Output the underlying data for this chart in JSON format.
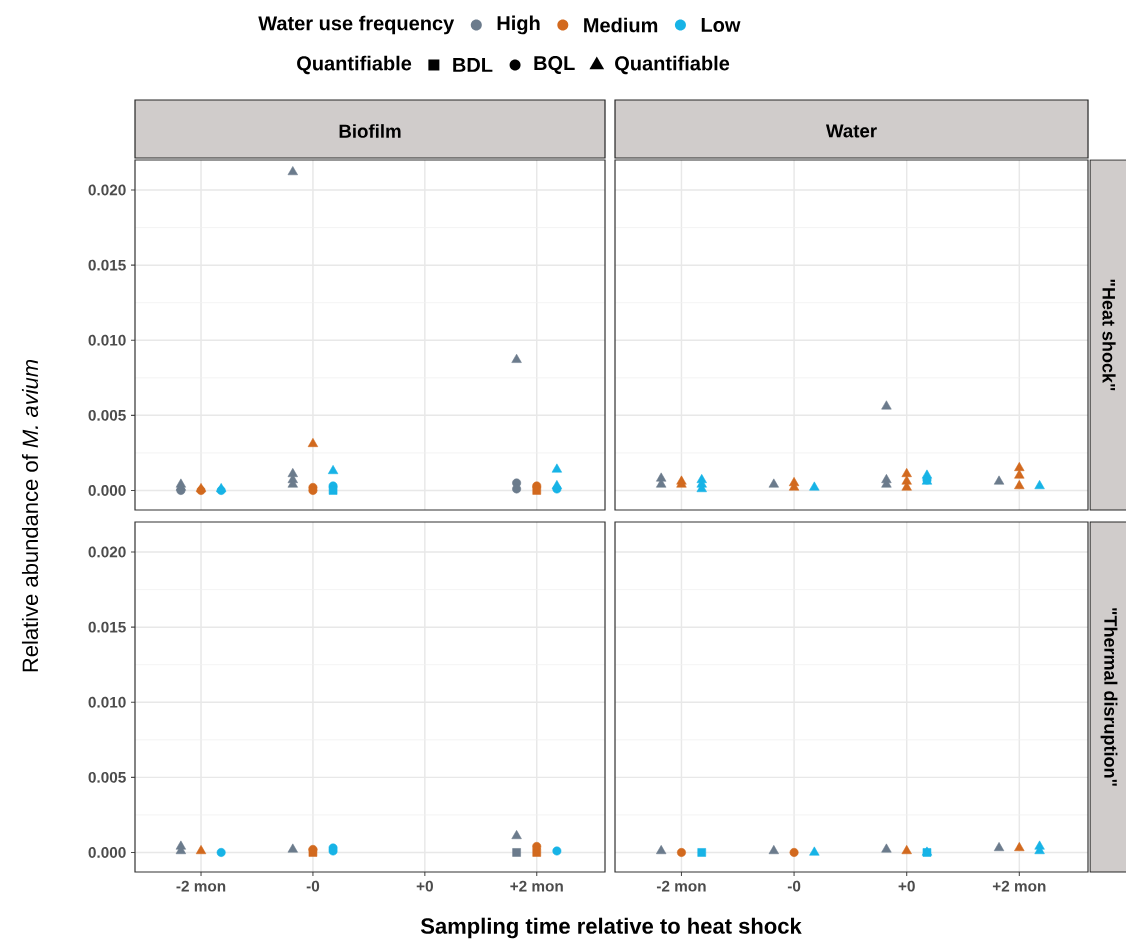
{
  "chart_data": [
    {
      "type": "scatter",
      "title": "Biofilm",
      "ylabel": "Relative abundance of *M. avium*",
      "legend": "top",
      "legend_title": "Water use frequency",
      "annotations": [
        "Quantifiable",
        "BDL",
        "BQL",
        "Quantifiable"
      ],
      "categories": [
        "-2 mon",
        "-0",
        "+0",
        "+2 mon"
      ],
      "ylim": [
        -0.0013,
        0.022
      ],
      "yticks": [
        {
          "value": 0,
          "label": "0.000"
        },
        {
          "value": 0.005,
          "label": "0.005"
        },
        {
          "value": 0.01,
          "label": "0.010"
        },
        {
          "value": 0.015,
          "label": "0.015"
        },
        {
          "value": 0.02,
          "label": "0.020"
        }
      ],
      "grid": true,
      "tick_labels": "y",
      "series": [
        {
          "name": "High",
          "color": "#6b7b8c",
          "marker": "circle",
          "x": [
            "-2 mon",
            "+2 mon",
            "+2 mon"
          ],
          "values": [
            0.0,
            0.0005,
            0.0001
          ]
        },
        {
          "color": "#6b7b8c",
          "marker": "triangle",
          "x": [
            "-2 mon",
            "-2 mon",
            "-0",
            "-0",
            "-0",
            "-0",
            "+2 mon"
          ],
          "values": [
            0.0004,
            0.0002,
            0.0011,
            0.0007,
            0.0004,
            0.0212,
            0.0087
          ]
        },
        {
          "name": "Medium",
          "color": "#d2691e",
          "marker": "circle",
          "x": [
            "-2 mon",
            "-0",
            "-0",
            "+2 mon"
          ],
          "values": [
            0.0,
            0.0002,
            0.0,
            0.0003
          ]
        },
        {
          "color": "#d2691e",
          "marker": "triangle",
          "x": [
            "-2 mon",
            "-0"
          ],
          "values": [
            0.0001,
            0.0031
          ]
        },
        {
          "color": "#d2691e",
          "marker": "square",
          "x": [
            "+2 mon"
          ],
          "values": [
            0.0
          ]
        },
        {
          "name": "Low",
          "color": "#17b3e6",
          "marker": "circle",
          "x": [
            "-2 mon",
            "-0",
            "+2 mon"
          ],
          "values": [
            0.0,
            0.0003,
            0.0001
          ]
        },
        {
          "color": "#17b3e6",
          "marker": "triangle",
          "x": [
            "-2 mon",
            "-0",
            "+2 mon",
            "+2 mon"
          ],
          "values": [
            0.0001,
            0.0013,
            0.0014,
            0.0003
          ]
        },
        {
          "color": "#17b3e6",
          "marker": "square",
          "x": [
            "-0"
          ],
          "values": [
            0.0
          ]
        }
      ]
    },
    {
      "type": "scatter",
      "title": "Water",
      "y2label": "\"Heat shock\"",
      "categories": [
        "-2 mon",
        "-0",
        "+0",
        "+2 mon"
      ],
      "ylim": [
        -0.0013,
        0.022
      ],
      "yticks": [
        0,
        0.005,
        0.01,
        0.015,
        0.02
      ],
      "grid": true,
      "tick_labels": false,
      "series": [
        {
          "color": "#6b7b8c",
          "marker": "triangle",
          "x": [
            "-2 mon",
            "-2 mon",
            "-0",
            "+0",
            "+0",
            "+0",
            "+2 mon"
          ],
          "values": [
            0.0008,
            0.0004,
            0.0004,
            0.0056,
            0.0007,
            0.0004,
            0.0006
          ]
        },
        {
          "color": "#d2691e",
          "marker": "triangle",
          "x": [
            "-2 mon",
            "-2 mon",
            "-0",
            "-0",
            "+0",
            "+0",
            "+0",
            "+2 mon",
            "+2 mon",
            "+2 mon"
          ],
          "values": [
            0.0006,
            0.0004,
            0.0005,
            0.0002,
            0.0011,
            0.0006,
            0.0002,
            0.0015,
            0.001,
            0.0003
          ]
        },
        {
          "color": "#17b3e6",
          "marker": "triangle",
          "x": [
            "-2 mon",
            "-2 mon",
            "-2 mon",
            "-0",
            "+0",
            "+0",
            "+2 mon"
          ],
          "values": [
            0.0007,
            0.0004,
            0.0001,
            0.0002,
            0.001,
            0.0006,
            0.0003
          ]
        },
        {
          "color": "#17b3e6",
          "marker": "circle",
          "x": [
            "+0"
          ],
          "values": [
            0.0007
          ]
        }
      ]
    },
    {
      "type": "scatter",
      "xlabel": "Sampling time relative to heat shock",
      "categories": [
        "-2 mon",
        "-0",
        "+0",
        "+2 mon"
      ],
      "ylim": [
        -0.0013,
        0.022
      ],
      "yticks": [
        {
          "value": 0,
          "label": "0.000"
        },
        {
          "value": 0.005,
          "label": "0.005"
        },
        {
          "value": 0.01,
          "label": "0.010"
        },
        {
          "value": 0.015,
          "label": "0.015"
        },
        {
          "value": 0.02,
          "label": "0.020"
        }
      ],
      "grid": true,
      "series": [
        {
          "color": "#6b7b8c",
          "marker": "triangle",
          "x": [
            "-2 mon",
            "-2 mon",
            "-0",
            "+2 mon"
          ],
          "values": [
            0.0004,
            0.0001,
            0.0002,
            0.0011
          ]
        },
        {
          "color": "#6b7b8c",
          "marker": "square",
          "x": [
            "+2 mon"
          ],
          "values": [
            0.0
          ]
        },
        {
          "color": "#d2691e",
          "marker": "triangle",
          "x": [
            "-2 mon"
          ],
          "values": [
            0.0001
          ]
        },
        {
          "color": "#d2691e",
          "marker": "square",
          "x": [
            "-0",
            "+2 mon"
          ],
          "values": [
            0.0,
            0.0
          ]
        },
        {
          "color": "#d2691e",
          "marker": "circle",
          "x": [
            "-0",
            "+2 mon"
          ],
          "values": [
            0.0002,
            0.0004
          ]
        },
        {
          "color": "#17b3e6",
          "marker": "circle",
          "x": [
            "-2 mon",
            "-0",
            "-0",
            "+2 mon"
          ],
          "values": [
            0.0,
            0.0003,
            0.0001,
            0.0001
          ]
        }
      ]
    },
    {
      "type": "scatter",
      "y2label": "\"Thermal disruption\"",
      "categories": [
        "-2 mon",
        "-0",
        "+0",
        "+2 mon"
      ],
      "ylim": [
        -0.0013,
        0.022
      ],
      "yticks": [
        0,
        0.005,
        0.01,
        0.015,
        0.02
      ],
      "grid": true,
      "tick_labels": "x",
      "series": [
        {
          "color": "#6b7b8c",
          "marker": "triangle",
          "x": [
            "-2 mon",
            "-0",
            "+0",
            "+2 mon"
          ],
          "values": [
            0.0001,
            0.0001,
            0.0002,
            0.0003
          ]
        },
        {
          "color": "#d2691e",
          "marker": "circle",
          "x": [
            "-2 mon",
            "-0"
          ],
          "values": [
            0.0,
            0.0
          ]
        },
        {
          "color": "#d2691e",
          "marker": "triangle",
          "x": [
            "+0",
            "+2 mon"
          ],
          "values": [
            0.0001,
            0.0003
          ]
        },
        {
          "color": "#17b3e6",
          "marker": "square",
          "x": [
            "-2 mon",
            "+0"
          ],
          "values": [
            0.0,
            0.0
          ]
        },
        {
          "color": "#17b3e6",
          "marker": "triangle",
          "x": [
            "-0",
            "+0",
            "+2 mon",
            "+2 mon"
          ],
          "values": [
            0.0,
            0.0,
            0.0004,
            0.0001
          ]
        }
      ]
    }
  ]
}
